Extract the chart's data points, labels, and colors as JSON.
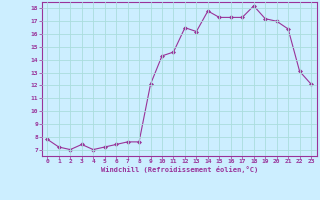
{
  "x": [
    0,
    1,
    2,
    3,
    4,
    5,
    6,
    7,
    8,
    9,
    10,
    11,
    12,
    13,
    14,
    15,
    16,
    17,
    18,
    19,
    20,
    21,
    22,
    23
  ],
  "y": [
    7.8,
    7.2,
    7.0,
    7.4,
    7.0,
    7.2,
    7.4,
    7.6,
    7.6,
    12.1,
    14.3,
    14.6,
    16.5,
    16.2,
    17.8,
    17.3,
    17.3,
    17.3,
    18.2,
    17.2,
    17.0,
    16.4,
    13.1,
    12.1
  ],
  "line_color": "#993399",
  "marker": "D",
  "marker_size": 2,
  "bg_color": "#cceeff",
  "grid_color": "#aadddd",
  "xlabel": "Windchill (Refroidissement éolien,°C)",
  "xlabel_color": "#993399",
  "tick_color": "#993399",
  "spine_color": "#993399",
  "ylim": [
    6.5,
    18.5
  ],
  "xlim": [
    -0.5,
    23.5
  ],
  "yticks": [
    7,
    8,
    9,
    10,
    11,
    12,
    13,
    14,
    15,
    16,
    17,
    18
  ],
  "xticks": [
    0,
    1,
    2,
    3,
    4,
    5,
    6,
    7,
    8,
    9,
    10,
    11,
    12,
    13,
    14,
    15,
    16,
    17,
    18,
    19,
    20,
    21,
    22,
    23
  ]
}
